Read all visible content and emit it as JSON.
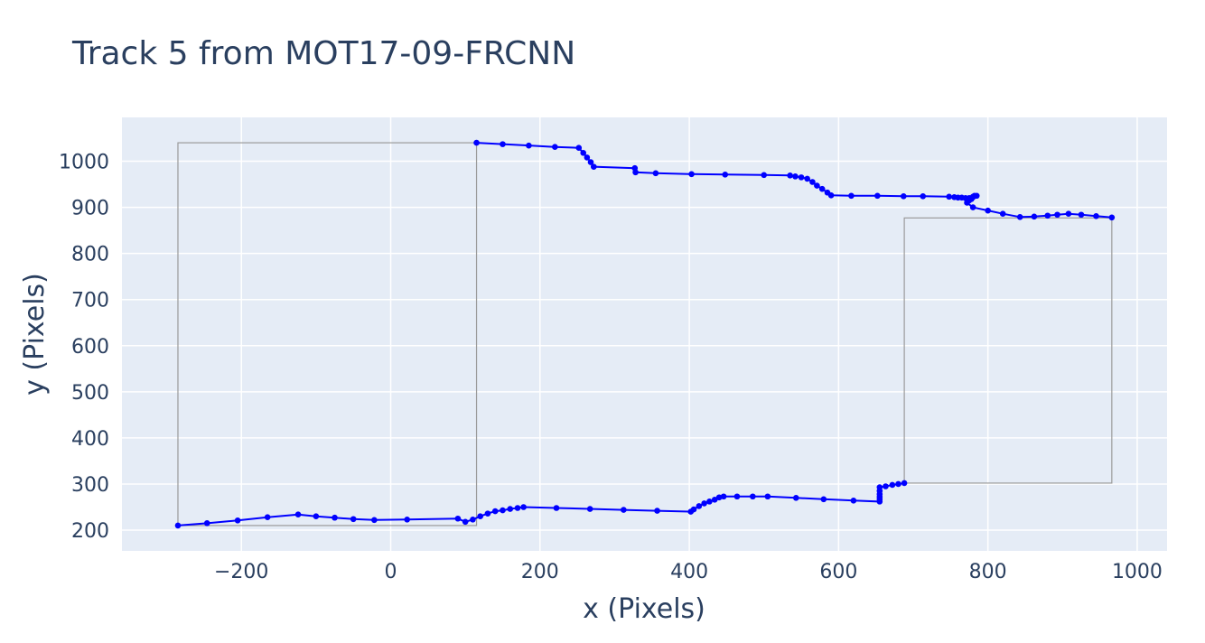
{
  "chart_data": {
    "type": "scatter",
    "title": "Track 5 from MOT17-09-FRCNN",
    "xlabel": "x (Pixels)",
    "ylabel": "y (Pixels)",
    "xlim": [
      -360,
      1040
    ],
    "ylim": [
      155,
      1095
    ],
    "xticks": [
      -200,
      0,
      200,
      400,
      600,
      800,
      1000
    ],
    "yticks": [
      200,
      300,
      400,
      500,
      600,
      700,
      800,
      900,
      1000
    ],
    "xtick_labels": [
      "−200",
      "0",
      "200",
      "400",
      "600",
      "800",
      "1000"
    ],
    "ytick_labels": [
      "200",
      "300",
      "400",
      "500",
      "600",
      "700",
      "800",
      "900",
      "1000"
    ],
    "grid": true,
    "colors": {
      "plot_bg": "#e5ecf6",
      "grid": "#ffffff",
      "series": "#0000ff",
      "box": "#9a9a9a",
      "text": "#2a3f5f"
    },
    "boxes": [
      {
        "x0": -285,
        "y0": 210,
        "x1": 115,
        "y1": 1040
      },
      {
        "x0": 688,
        "y0": 302,
        "x1": 966,
        "y1": 877
      }
    ],
    "series": [
      {
        "mode": "lines+markers",
        "x": [
          -285,
          -246,
          -205,
          -165,
          -124,
          -100,
          -75,
          -50,
          -22,
          22,
          90,
          100,
          110,
          120,
          130,
          140,
          150,
          160,
          170,
          178,
          222,
          267,
          312,
          357,
          402,
          406,
          413,
          420,
          427,
          434,
          440,
          446,
          464,
          485,
          505,
          543,
          580,
          620,
          655,
          655,
          655,
          655,
          655,
          655,
          663,
          672,
          680,
          688
        ],
        "y": [
          210,
          215,
          221,
          228,
          234,
          230,
          227,
          224,
          222,
          223,
          225,
          218,
          223,
          230,
          236,
          241,
          243,
          246,
          248,
          250,
          248,
          246,
          244,
          242,
          240,
          245,
          252,
          258,
          262,
          266,
          271,
          273,
          273,
          273,
          273,
          270,
          267,
          264,
          262,
          267,
          272,
          278,
          285,
          293,
          295,
          298,
          300,
          302
        ]
      },
      {
        "mode": "lines+markers",
        "x": [
          115,
          150,
          185,
          220,
          252,
          258,
          263,
          268,
          272,
          327,
          328,
          355,
          403,
          448,
          500,
          535,
          542,
          550,
          558,
          565,
          571,
          578,
          585,
          590,
          617,
          652,
          687,
          713,
          748,
          755,
          760,
          765,
          770,
          775,
          780,
          782,
          785,
          780,
          778,
          775,
          772,
          780,
          800,
          820,
          843,
          862,
          880,
          893,
          908,
          925,
          945,
          966
        ],
        "y": [
          1040,
          1037,
          1034,
          1031,
          1029,
          1018,
          1008,
          998,
          988,
          985,
          976,
          974,
          972,
          971,
          970,
          969,
          967,
          965,
          962,
          955,
          947,
          940,
          932,
          926,
          925,
          925,
          924,
          924,
          923,
          922,
          921,
          921,
          920,
          920,
          923,
          925,
          925,
          922,
          918,
          915,
          910,
          900,
          893,
          886,
          879,
          880,
          882,
          884,
          886,
          884,
          881,
          878
        ]
      }
    ]
  }
}
